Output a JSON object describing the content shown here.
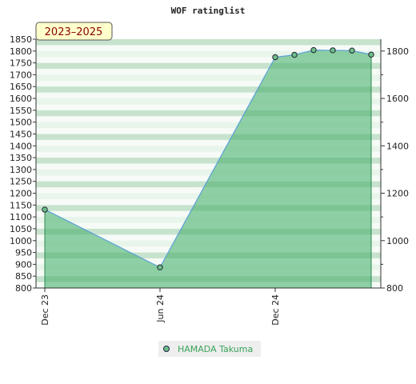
{
  "chart_data": {
    "type": "area",
    "title": "WOF ratinglist",
    "range_label": "2023–2025",
    "x": [
      "2023-12",
      "2024-06",
      "2024-12",
      "2025-01",
      "2025-02",
      "2025-03",
      "2025-04",
      "2025-05"
    ],
    "x_tick_labels": [
      "Dec 23",
      "Jun 24",
      "Dec 24"
    ],
    "x_tick_index": [
      0,
      1,
      2
    ],
    "series": [
      {
        "name": "HAMADA Takuma",
        "values": [
          1131,
          887,
          1774,
          1784,
          1804,
          1803,
          1802,
          1785
        ],
        "line_color": "#5aa0d8",
        "fill_color": "#6cc08a",
        "marker_color": "#3a8a55"
      }
    ],
    "ylim": [
      800,
      1850
    ],
    "y_left_ticks": [
      800,
      850,
      900,
      950,
      1000,
      1050,
      1100,
      1150,
      1200,
      1250,
      1300,
      1350,
      1400,
      1450,
      1500,
      1550,
      1600,
      1650,
      1700,
      1750,
      1800,
      1850
    ],
    "y_right_ticks": [
      800,
      1000,
      1200,
      1400,
      1600,
      1800
    ],
    "grid": true,
    "legend_position": "bottom-center",
    "xlabel": "",
    "ylabel": ""
  }
}
